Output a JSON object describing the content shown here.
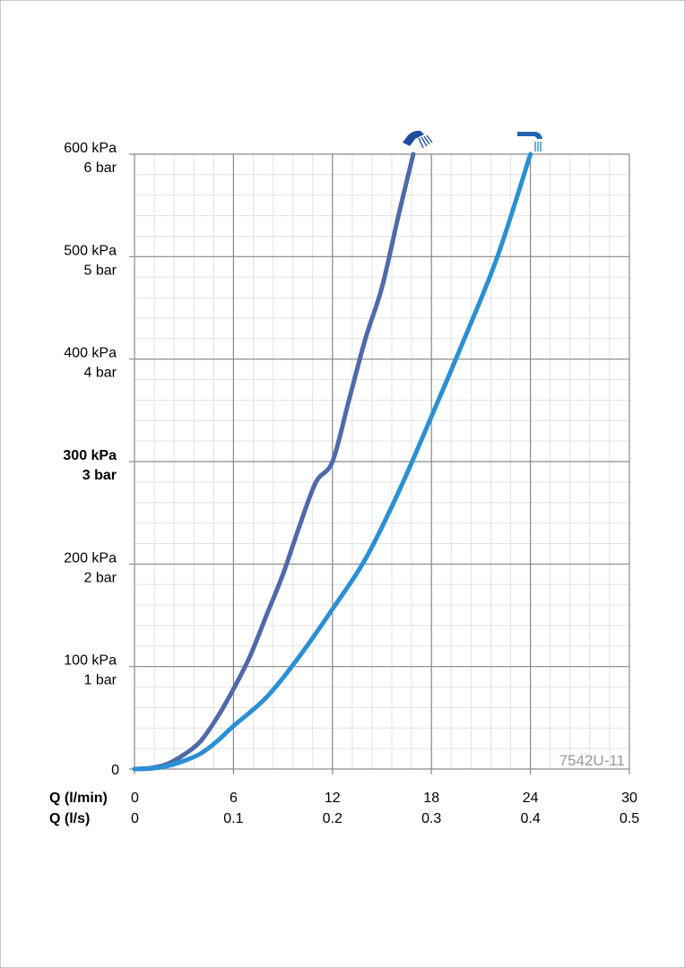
{
  "chart_data": {
    "type": "line",
    "x_unit_label": "Q (l/min)",
    "x2_unit_label": "Q (l/s)",
    "x_ticks": [
      "0",
      "6",
      "12",
      "18",
      "24",
      "30"
    ],
    "x2_ticks": [
      "0",
      "0.1",
      "0.2",
      "0.3",
      "0.4",
      "0.5"
    ],
    "xlim": [
      0,
      30
    ],
    "ylim": [
      0,
      600
    ],
    "y_ticks": [
      {
        "value": 0,
        "kpa": "0",
        "bar": ""
      },
      {
        "value": 100,
        "kpa": "100 kPa",
        "bar": "1 bar"
      },
      {
        "value": 200,
        "kpa": "200 kPa",
        "bar": "2 bar"
      },
      {
        "value": 300,
        "kpa": "300 kPa",
        "bar": "3 bar",
        "bold": true
      },
      {
        "value": 400,
        "kpa": "400 kPa",
        "bar": "4 bar"
      },
      {
        "value": 500,
        "kpa": "500 kPa",
        "bar": "5 bar"
      },
      {
        "value": 600,
        "kpa": "600 kPa",
        "bar": "6 bar"
      }
    ],
    "grid": true,
    "series": [
      {
        "icon": "hand-shower-icon",
        "color": "#5069a8",
        "x": [
          0,
          1,
          2,
          3,
          4,
          5,
          6,
          7,
          8,
          9,
          10,
          11,
          12,
          13,
          14,
          15,
          16,
          16.9
        ],
        "y": [
          0,
          1,
          5,
          14,
          27,
          50,
          78,
          110,
          150,
          190,
          237,
          280,
          300,
          360,
          420,
          470,
          540,
          600
        ]
      },
      {
        "icon": "overhead-shower-icon",
        "color": "#2b8fd3",
        "x": [
          0,
          1,
          2,
          3,
          4,
          5,
          6,
          8,
          10,
          12,
          14,
          16,
          18,
          20,
          22,
          24
        ],
        "y": [
          0,
          0.5,
          3,
          8,
          15,
          27,
          42,
          70,
          110,
          156,
          205,
          270,
          344,
          420,
          500,
          600
        ]
      }
    ],
    "annotation": "7542U-11"
  }
}
